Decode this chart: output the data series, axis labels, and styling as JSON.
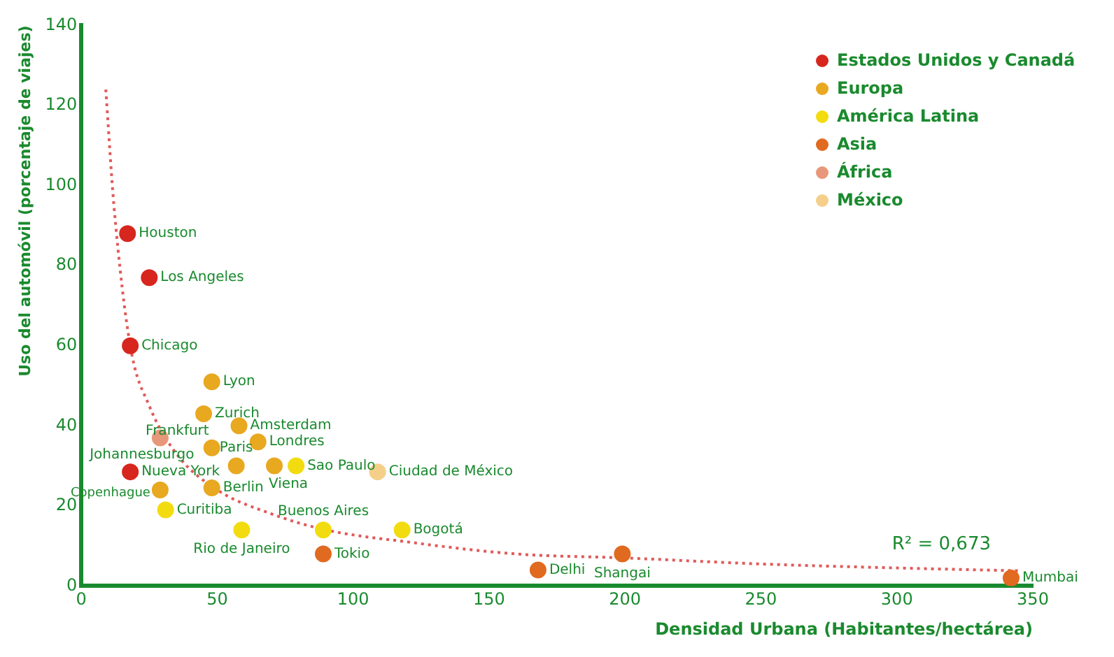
{
  "chart_data": {
    "type": "scatter",
    "xlabel": "Densidad Urbana (Habitantes/hectárea)",
    "ylabel": "Uso del automóvil (porcentaje de viajes)",
    "xlim": [
      0,
      350
    ],
    "xticks": [
      0,
      50,
      100,
      150,
      200,
      250,
      300,
      350
    ],
    "ylim": [
      0,
      140
    ],
    "yticks": [
      0,
      20,
      40,
      60,
      80,
      100,
      120,
      140
    ],
    "grid": false,
    "legend": "top right",
    "marker": "circle",
    "series": [
      {
        "name": "Estados Unidos y Canadá",
        "color": "#d7261e",
        "x": [
          17,
          25,
          18,
          18
        ],
        "values": [
          88,
          77,
          60,
          28.5
        ]
      },
      {
        "name": "Europa",
        "color": "#e8a820",
        "x": [
          48,
          45,
          58,
          48,
          65,
          57,
          71,
          29,
          48
        ],
        "values": [
          51,
          43,
          40,
          34.5,
          36,
          30,
          30,
          24,
          24.5
        ]
      },
      {
        "name": "América Latina",
        "color": "#f2dc0f",
        "x": [
          79,
          31,
          59,
          89,
          118
        ],
        "values": [
          30,
          19,
          14,
          14,
          14
        ]
      },
      {
        "name": "Asia",
        "color": "#e06a20",
        "x": [
          89,
          168,
          199,
          342
        ],
        "values": [
          8,
          4,
          8,
          2
        ]
      },
      {
        "name": "África",
        "color": "#e8987a",
        "x": [
          29
        ],
        "values": [
          37
        ]
      },
      {
        "name": "México",
        "color": "#f5cf8a",
        "x": [
          109
        ],
        "values": [
          28.5
        ]
      },
      {
        "type": "line",
        "color": "#e05a5a",
        "line_style": "dotted",
        "marker": "none",
        "x": [
          9,
          12,
          18,
          25,
          35,
          50,
          70,
          90,
          120,
          160,
          200,
          250,
          300,
          345
        ],
        "values": [
          124,
          95,
          60,
          45,
          33,
          24,
          18,
          14,
          11,
          8,
          7,
          5.5,
          4.5,
          3.8
        ]
      }
    ],
    "annotations": [
      {
        "text": "Houston",
        "x": 17,
        "y": 88
      },
      {
        "text": "Los Angeles",
        "x": 25,
        "y": 77
      },
      {
        "text": "Chicago",
        "x": 18,
        "y": 60
      },
      {
        "text": "Nueva York",
        "x": 18,
        "y": 28.5
      },
      {
        "text": "Lyon",
        "x": 48,
        "y": 51
      },
      {
        "text": "Zurich",
        "x": 45,
        "y": 43
      },
      {
        "text": "Amsterdam",
        "x": 58,
        "y": 40
      },
      {
        "text": "Frankfurt",
        "x": 48,
        "y": 34.5
      },
      {
        "text": "Londres",
        "x": 65,
        "y": 36
      },
      {
        "text": "Paris",
        "x": 57,
        "y": 30
      },
      {
        "text": "Viena",
        "x": 71,
        "y": 30
      },
      {
        "text": "Copenhague",
        "x": 29,
        "y": 24
      },
      {
        "text": "Berlin",
        "x": 48,
        "y": 24.5
      },
      {
        "text": "Sao Paulo",
        "x": 79,
        "y": 30
      },
      {
        "text": "Curitiba",
        "x": 31,
        "y": 19
      },
      {
        "text": "Rio de Janeiro",
        "x": 59,
        "y": 14
      },
      {
        "text": "Buenos Aires",
        "x": 89,
        "y": 14
      },
      {
        "text": "Bogotá",
        "x": 118,
        "y": 14
      },
      {
        "text": "Tokio",
        "x": 89,
        "y": 8
      },
      {
        "text": "Delhi",
        "x": 168,
        "y": 4
      },
      {
        "text": "Shangai",
        "x": 199,
        "y": 8
      },
      {
        "text": "Mumbai",
        "x": 342,
        "y": 2
      },
      {
        "text": "Johannesburgo",
        "x": 29,
        "y": 37
      },
      {
        "text": "Ciudad de México",
        "x": 109,
        "y": 28.5
      },
      "R² = 0,673"
    ]
  }
}
